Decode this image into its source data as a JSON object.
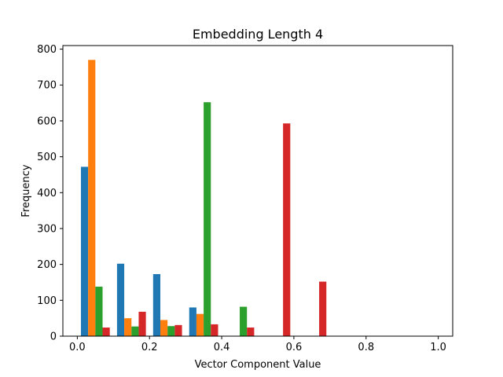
{
  "chart_data": {
    "type": "bar",
    "title": "Embedding Length 4",
    "xlabel": "Vector Component Value",
    "ylabel": "Frequency",
    "xlim": [
      -0.04,
      1.04
    ],
    "ylim": [
      0,
      810
    ],
    "xticks": [
      0.0,
      0.2,
      0.4,
      0.6,
      0.8,
      1.0
    ],
    "xtick_labels": [
      "0.0",
      "0.2",
      "0.4",
      "0.6",
      "0.8",
      "1.0"
    ],
    "yticks": [
      0,
      100,
      200,
      300,
      400,
      500,
      600,
      700,
      800
    ],
    "ytick_labels": [
      "0",
      "100",
      "200",
      "300",
      "400",
      "500",
      "600",
      "700",
      "800"
    ],
    "grid": false,
    "bin_edges": [
      0.0,
      0.1,
      0.2,
      0.3,
      0.4,
      0.5,
      0.6,
      0.7,
      0.8,
      0.9,
      1.0
    ],
    "series": [
      {
        "color": "#1f77b4",
        "values": [
          472,
          202,
          173,
          80,
          0,
          0,
          0,
          0,
          0,
          0
        ]
      },
      {
        "color": "#ff7f0e",
        "values": [
          770,
          50,
          45,
          62,
          0,
          0,
          0,
          0,
          0,
          0
        ]
      },
      {
        "color": "#2ca02c",
        "values": [
          138,
          27,
          28,
          652,
          82,
          0,
          0,
          0,
          0,
          0
        ]
      },
      {
        "color": "#d62728",
        "values": [
          24,
          68,
          31,
          33,
          24,
          593,
          152,
          0,
          0,
          0
        ]
      }
    ]
  }
}
